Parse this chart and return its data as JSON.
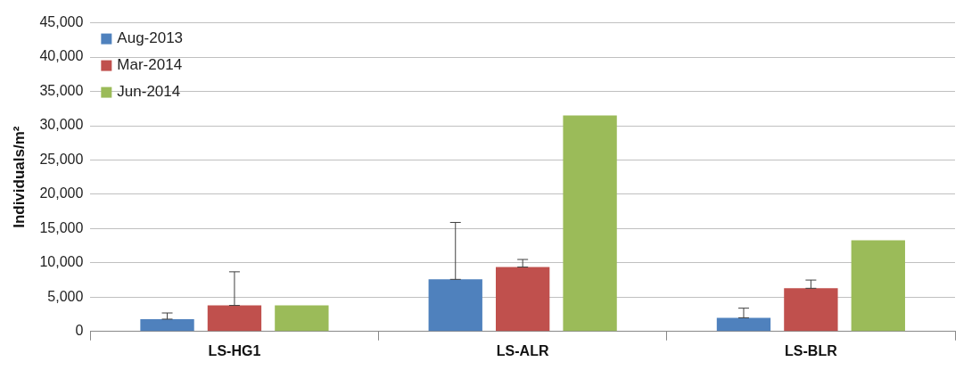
{
  "chart_data": {
    "type": "bar",
    "ylabel": "Individuals/m²",
    "categories": [
      "LS-HG1",
      "LS-ALR",
      "LS-BLR"
    ],
    "series": [
      {
        "name": "Aug-2013",
        "color": "#4f81bd",
        "values": [
          1800,
          7600,
          2000
        ],
        "errors": [
          [
            1800,
            2700
          ],
          [
            7600,
            15900
          ],
          [
            2000,
            3400
          ]
        ]
      },
      {
        "name": "Mar-2014",
        "color": "#c0504d",
        "values": [
          3800,
          9400,
          6300
        ],
        "errors": [
          [
            3800,
            8700
          ],
          [
            9400,
            10500
          ],
          [
            6300,
            7500
          ]
        ]
      },
      {
        "name": "Jun-2014",
        "color": "#9bbb59",
        "values": [
          3800,
          31500,
          13300
        ],
        "errors": [
          null,
          null,
          null
        ]
      }
    ],
    "ylim": [
      0,
      45000
    ],
    "yticks": [
      0,
      {
        "value": 5000,
        "label": "5,000"
      },
      {
        "value": 10000,
        "label": "10,000"
      },
      {
        "value": 15000,
        "label": "15,000"
      },
      {
        "value": 20000,
        "label": "20,000"
      },
      {
        "value": 25000,
        "label": "25,000"
      },
      {
        "value": 30000,
        "label": "30,000"
      },
      {
        "value": 35000,
        "label": "35,000"
      },
      {
        "value": 40000,
        "label": "40,000"
      },
      {
        "value": 45000,
        "label": "45,000"
      }
    ],
    "grid": "y",
    "legend": "top left"
  }
}
